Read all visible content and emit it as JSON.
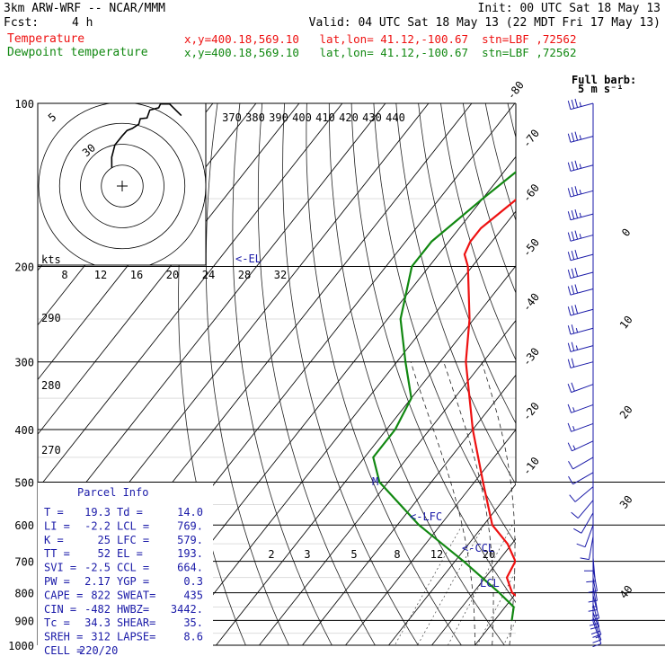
{
  "header": {
    "model": "3km ARW-WRF -- NCAR/MMM",
    "init": "Init: 00 UTC Sat 18 May 13",
    "fcst_label": "Fcst:",
    "fcst_value": "4 h",
    "valid": "Valid: 04 UTC Sat 18 May 13 (22 MDT Fri 17 May 13)",
    "temp_label": "Temperature",
    "dew_label": "Dewpoint temperature",
    "temp_loc": "x,y=400.18,569.10   lat,lon= 41.12,-100.67  stn=LBF ,72562",
    "dew_loc": "x,y=400.18,569.10   lat,lon= 41.12,-100.67  stn=LBF ,72562"
  },
  "colors": {
    "temperature": "#ee1111",
    "dewpoint": "#118811",
    "wind": "#1a1aa8"
  },
  "legend": {
    "full_barb_1": "Full barb:",
    "full_barb_2": "5 m s⁻¹"
  },
  "chart_data": {
    "type": "line",
    "title": "",
    "yaxis": "pressure (hPa), log scale",
    "pressure_ticks": [
      100,
      200,
      300,
      400,
      500,
      600,
      700,
      800,
      900,
      1000
    ],
    "temp_ticks": [
      -80,
      -70,
      -60,
      -50,
      -40,
      -30,
      -20,
      -10,
      0,
      10,
      20,
      30,
      40
    ],
    "theta_labels": [
      370,
      380,
      390,
      400,
      410,
      420,
      430,
      440
    ],
    "hodograph_speed_labels": [
      "kts",
      "8",
      "12",
      "16",
      "20",
      "24",
      "28",
      "32"
    ],
    "hodograph_ring_labels": [
      "5",
      "30"
    ],
    "mixing_ratio_labels": [
      "2",
      "3",
      "5",
      "8",
      "12",
      "20"
    ],
    "height_labels": [
      "290",
      "280",
      "270"
    ],
    "markers": [
      "<-EL",
      "<-LFC",
      "<-CCL",
      "LCL",
      "M"
    ],
    "series": [
      {
        "name": "Temperature",
        "points": [
          [
            100,
            -46
          ],
          [
            120,
            -52
          ],
          [
            150,
            -62
          ],
          [
            170,
            -65
          ],
          [
            180,
            -65
          ],
          [
            190,
            -64
          ],
          [
            200,
            -61
          ],
          [
            250,
            -51
          ],
          [
            300,
            -44
          ],
          [
            400,
            -30
          ],
          [
            500,
            -18
          ],
          [
            600,
            -8
          ],
          [
            650,
            -1
          ],
          [
            700,
            4
          ],
          [
            750,
            5
          ],
          [
            800,
            9
          ],
          [
            850,
            16
          ],
          [
            870,
            18
          ],
          [
            900,
            19.3
          ]
        ]
      },
      {
        "name": "Dewpoint temperature",
        "points": [
          [
            100,
            -60
          ],
          [
            150,
            -70
          ],
          [
            180,
            -74
          ],
          [
            200,
            -74
          ],
          [
            250,
            -67
          ],
          [
            300,
            -58
          ],
          [
            350,
            -50
          ],
          [
            400,
            -48
          ],
          [
            450,
            -48
          ],
          [
            500,
            -42
          ],
          [
            600,
            -25
          ],
          [
            700,
            -8
          ],
          [
            800,
            6
          ],
          [
            850,
            12
          ],
          [
            900,
            14
          ]
        ]
      }
    ],
    "parcel_info": {
      "title": "Parcel Info",
      "rows": [
        [
          "T  =",
          "19.3",
          "Td =",
          "14.0"
        ],
        [
          "LI =",
          "-2.2",
          "LCL =",
          "769."
        ],
        [
          "K  =",
          "25",
          "LFC =",
          "579."
        ],
        [
          "TT =",
          "52",
          "EL  =",
          "193."
        ],
        [
          "SVI =",
          "-2.5",
          "CCL =",
          "664."
        ],
        [
          "PW =",
          "2.17",
          "YGP =",
          "0.3"
        ],
        [
          "CAPE =",
          "822",
          "SWEAT=",
          "435"
        ],
        [
          "CIN =",
          "-482",
          "HWBZ=",
          "3442."
        ],
        [
          "Tc =",
          "34.3",
          "SHEAR=",
          "35."
        ],
        [
          "SREH =",
          "312",
          "LAPSE=",
          "8.6"
        ],
        [
          "CELL =",
          "220/20",
          "",
          ""
        ]
      ]
    },
    "wind_profile": [
      {
        "p": 100,
        "dir": 255,
        "spd": 35
      },
      {
        "p": 115,
        "dir": 255,
        "spd": 35
      },
      {
        "p": 130,
        "dir": 255,
        "spd": 35
      },
      {
        "p": 145,
        "dir": 255,
        "spd": 35
      },
      {
        "p": 160,
        "dir": 255,
        "spd": 35
      },
      {
        "p": 175,
        "dir": 255,
        "spd": 35
      },
      {
        "p": 190,
        "dir": 255,
        "spd": 30
      },
      {
        "p": 205,
        "dir": 255,
        "spd": 30
      },
      {
        "p": 220,
        "dir": 255,
        "spd": 30
      },
      {
        "p": 240,
        "dir": 255,
        "spd": 30
      },
      {
        "p": 260,
        "dir": 255,
        "spd": 25
      },
      {
        "p": 280,
        "dir": 255,
        "spd": 25
      },
      {
        "p": 300,
        "dir": 255,
        "spd": 20
      },
      {
        "p": 330,
        "dir": 250,
        "spd": 20
      },
      {
        "p": 360,
        "dir": 250,
        "spd": 15
      },
      {
        "p": 390,
        "dir": 250,
        "spd": 15
      },
      {
        "p": 420,
        "dir": 245,
        "spd": 15
      },
      {
        "p": 450,
        "dir": 240,
        "spd": 10
      },
      {
        "p": 480,
        "dir": 240,
        "spd": 10
      },
      {
        "p": 510,
        "dir": 230,
        "spd": 10
      },
      {
        "p": 540,
        "dir": 220,
        "spd": 10
      },
      {
        "p": 570,
        "dir": 210,
        "spd": 10
      },
      {
        "p": 600,
        "dir": 200,
        "spd": 10
      },
      {
        "p": 630,
        "dir": 190,
        "spd": 10
      },
      {
        "p": 660,
        "dir": 180,
        "spd": 10
      },
      {
        "p": 690,
        "dir": 175,
        "spd": 10
      },
      {
        "p": 720,
        "dir": 170,
        "spd": 10
      },
      {
        "p": 750,
        "dir": 170,
        "spd": 10
      },
      {
        "p": 780,
        "dir": 170,
        "spd": 15
      },
      {
        "p": 810,
        "dir": 165,
        "spd": 15
      },
      {
        "p": 840,
        "dir": 165,
        "spd": 20
      },
      {
        "p": 870,
        "dir": 160,
        "spd": 20
      },
      {
        "p": 890,
        "dir": 160,
        "spd": 15
      },
      {
        "p": 905,
        "dir": 160,
        "spd": 10
      }
    ],
    "hodograph_trace": [
      [
        15,
        330
      ],
      [
        22,
        340
      ],
      [
        30,
        350
      ],
      [
        36,
        0
      ],
      [
        40,
        5
      ],
      [
        42,
        10
      ],
      [
        46,
        15
      ],
      [
        50,
        15
      ],
      [
        52,
        20
      ],
      [
        58,
        20
      ],
      [
        62,
        25
      ],
      [
        65,
        25
      ],
      [
        68,
        30
      ],
      [
        66,
        40
      ]
    ]
  }
}
